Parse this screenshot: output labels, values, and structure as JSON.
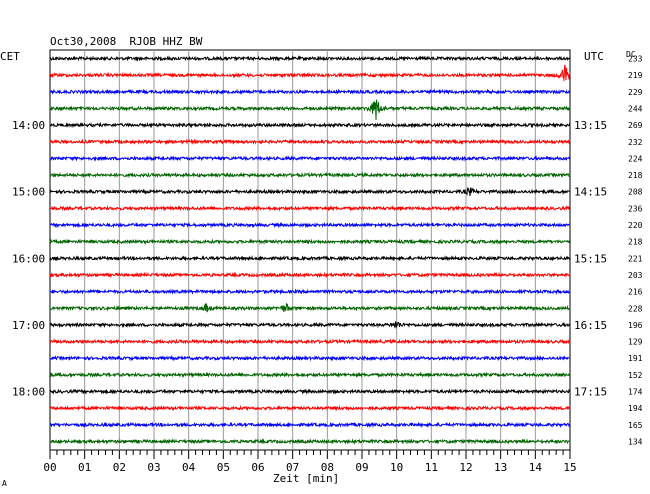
{
  "chart_data": {
    "type": "line",
    "title": "Oct30,2008  RJOB HHZ BW",
    "xlabel": "Zeit [min]",
    "left_axis_label": "CET",
    "right_axis_label": "UTC",
    "dc_label": "DC",
    "x_range": [
      0,
      15
    ],
    "x_ticks": [
      "00",
      "01",
      "02",
      "03",
      "04",
      "05",
      "06",
      "07",
      "08",
      "09",
      "10",
      "11",
      "12",
      "13",
      "14",
      "15"
    ],
    "left_time_labels": [
      {
        "trace": 4,
        "label": "14:00"
      },
      {
        "trace": 8,
        "label": "15:00"
      },
      {
        "trace": 12,
        "label": "16:00"
      },
      {
        "trace": 16,
        "label": "17:00"
      },
      {
        "trace": 20,
        "label": "18:00"
      }
    ],
    "right_time_labels": [
      {
        "trace": 4,
        "label": "13:15"
      },
      {
        "trace": 8,
        "label": "14:15"
      },
      {
        "trace": 12,
        "label": "15:15"
      },
      {
        "trace": 16,
        "label": "16:15"
      },
      {
        "trace": 20,
        "label": "17:15"
      }
    ],
    "trace_colors": [
      "#000000",
      "#ff0000",
      "#0000ff",
      "#006400"
    ],
    "dc_offsets": [
      "233",
      "219",
      "229",
      "244",
      "269",
      "232",
      "224",
      "218",
      "208",
      "236",
      "220",
      "218",
      "221",
      "203",
      "216",
      "228",
      "196",
      "129",
      "191",
      "152",
      "174",
      "194",
      "165",
      "134"
    ],
    "events": [
      {
        "trace": 1,
        "minute": 14.85,
        "amplitude": 12
      },
      {
        "trace": 3,
        "minute": 9.4,
        "amplitude": 14
      },
      {
        "trace": 8,
        "minute": 12.1,
        "amplitude": 4
      },
      {
        "trace": 15,
        "minute": 4.5,
        "amplitude": 4
      },
      {
        "trace": 15,
        "minute": 6.8,
        "amplitude": 5
      },
      {
        "trace": 16,
        "minute": 10.0,
        "amplitude": 4
      }
    ],
    "footer_mark": "A"
  }
}
